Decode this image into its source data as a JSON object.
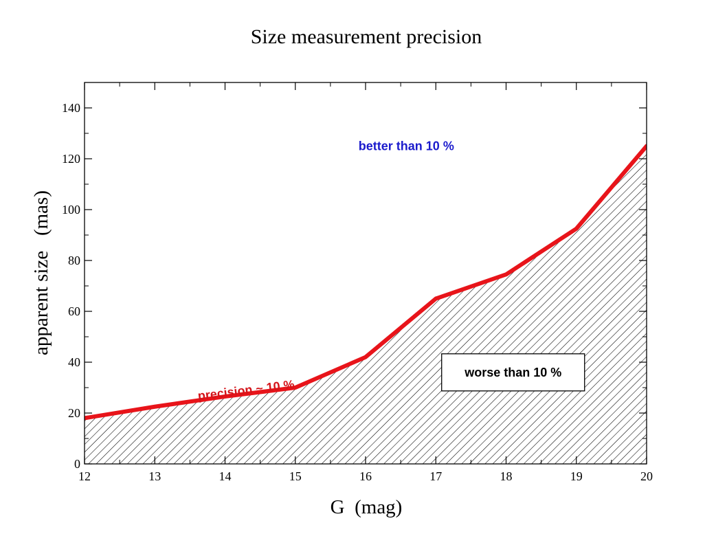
{
  "chart_data": {
    "type": "area",
    "title": "Size measurement precision",
    "xlabel": "G  (mag)",
    "ylabel": "apparent size   (mas)",
    "xlim": [
      12,
      20
    ],
    "ylim": [
      0,
      150
    ],
    "xticks": [
      12,
      13,
      14,
      15,
      16,
      17,
      18,
      19,
      20
    ],
    "yticks": [
      0,
      20,
      40,
      60,
      80,
      100,
      120,
      140
    ],
    "grid": false,
    "series": [
      {
        "color": "#e8141a",
        "fill_pattern": "diagonal-hatch",
        "x": [
          12,
          13,
          14,
          15,
          16,
          17,
          18,
          19,
          20
        ],
        "y": [
          18,
          22.5,
          26.5,
          30,
          42,
          65,
          74.5,
          92.5,
          125
        ]
      }
    ],
    "annotations": [
      {
        "id": "above",
        "text": "better than 10 %",
        "color": "#1a1acc",
        "x": 16.58,
        "y": 125,
        "boxed": false,
        "rotation": 0
      },
      {
        "id": "curve",
        "text": "precision ~ 10 %",
        "color": "#d4141a",
        "x": 14.3,
        "y": 29,
        "boxed": false,
        "rotation": -7
      },
      {
        "id": "below",
        "text": "worse than 10 %",
        "color": "#000000",
        "x": 18.1,
        "y": 36,
        "boxed": true,
        "rotation": 0
      }
    ]
  }
}
